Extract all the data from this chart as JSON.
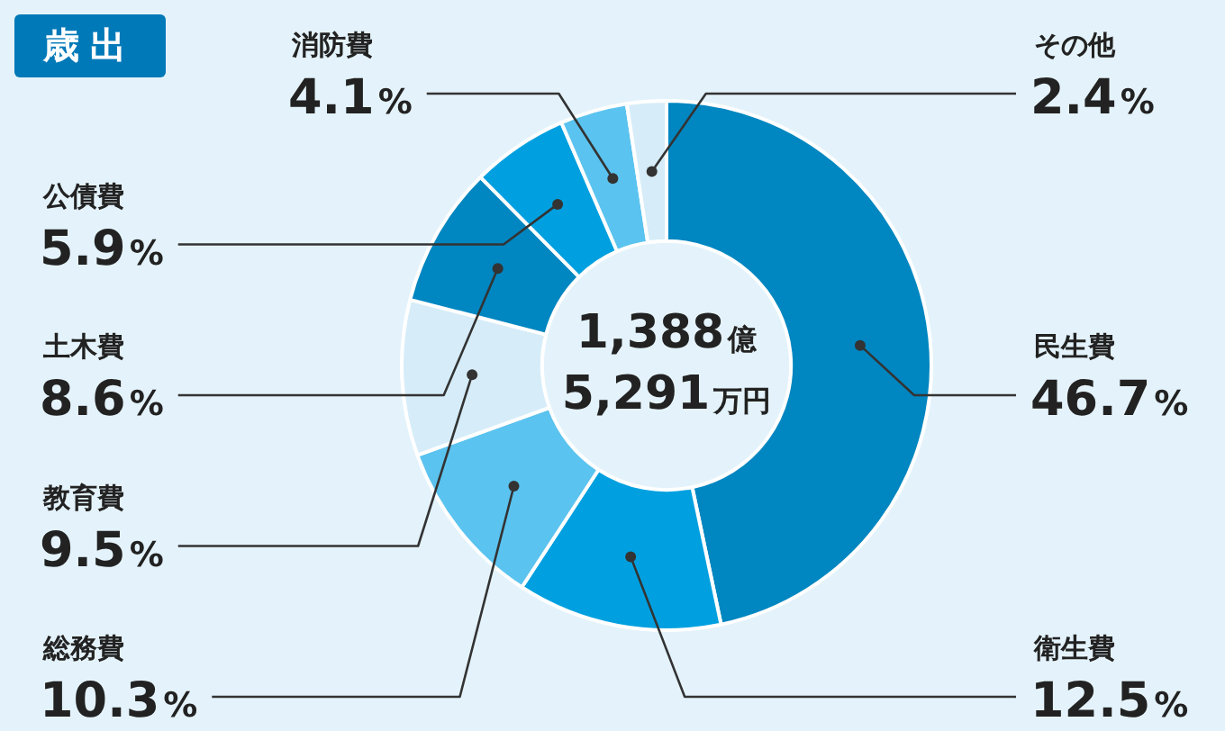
{
  "chart_data": {
    "type": "donut",
    "title": "歳出",
    "categories": [
      "民生費",
      "衛生費",
      "総務費",
      "教育費",
      "土木費",
      "公債費",
      "消防費",
      "その他"
    ],
    "values": [
      46.7,
      12.5,
      10.3,
      9.5,
      8.6,
      5.9,
      4.1,
      2.4
    ],
    "value_labels": [
      "46.7%",
      "12.5%",
      "10.3%",
      "9.5%",
      "8.6%",
      "5.9%",
      "4.1%",
      "2.4%"
    ],
    "colors": [
      "#0086c0",
      "#00a0e0",
      "#5bc3ef",
      "#d6edf9",
      "#0086c0",
      "#00a0e0",
      "#5bc3ef",
      "#d6edf9"
    ],
    "annotations": [
      "1,388億",
      "5,291万円"
    ],
    "legend": false
  }
}
